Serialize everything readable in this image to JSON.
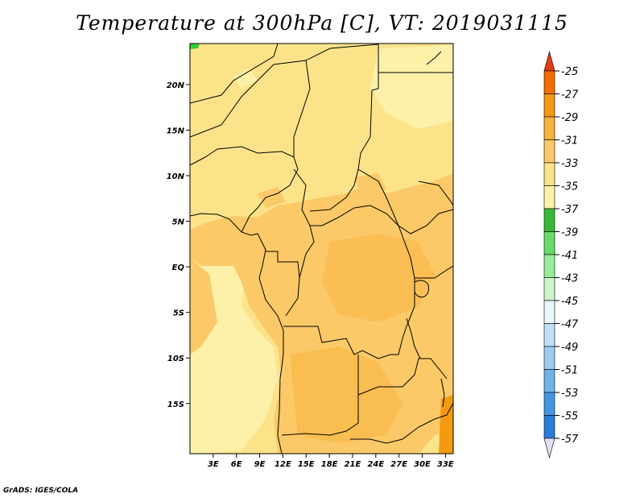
{
  "title": "Temperature at 300hPa [C], VT: 2019031115",
  "credit": "GrADS: IGES/COLA",
  "map": {
    "lat_range": [
      -20.5,
      24.5
    ],
    "lon_range": [
      0,
      34
    ],
    "lat_ticks": [
      {
        "value": 20,
        "label": "20N"
      },
      {
        "value": 15,
        "label": "15N"
      },
      {
        "value": 10,
        "label": "10N"
      },
      {
        "value": 5,
        "label": "5N"
      },
      {
        "value": 0,
        "label": "EQ"
      },
      {
        "value": -5,
        "label": "5S"
      },
      {
        "value": -10,
        "label": "10S"
      },
      {
        "value": -15,
        "label": "15S"
      }
    ],
    "lon_ticks": [
      {
        "value": 3,
        "label": "3E"
      },
      {
        "value": 6,
        "label": "6E"
      },
      {
        "value": 9,
        "label": "9E"
      },
      {
        "value": 12,
        "label": "12E"
      },
      {
        "value": 15,
        "label": "15E"
      },
      {
        "value": 18,
        "label": "18E"
      },
      {
        "value": 21,
        "label": "21E"
      },
      {
        "value": 24,
        "label": "24E"
      },
      {
        "value": 27,
        "label": "27E"
      },
      {
        "value": 30,
        "label": "30E"
      },
      {
        "value": 33,
        "label": "33E"
      }
    ],
    "field_colors": {
      "lt_35": "#fdf0a8",
      "35_33": "#fce38a",
      "33_31": "#fbc968",
      "31_29": "#f8b23c",
      "29_27": "#f49a11",
      "green_patch": "#33cc33"
    }
  },
  "colorbar": {
    "labels": [
      "-25",
      "-27",
      "-29",
      "-31",
      "-33",
      "-35",
      "-37",
      "-39",
      "-41",
      "-43",
      "-45",
      "-47",
      "-49",
      "-51",
      "-53",
      "-55",
      "-57"
    ],
    "colors": [
      "#e83a10",
      "#f56c00",
      "#f49a11",
      "#f8b23c",
      "#fbc968",
      "#fce38a",
      "#fdf0a8",
      "#33bb33",
      "#66dd66",
      "#99ee99",
      "#ccf5cc",
      "#e6f6fb",
      "#bfe0f6",
      "#9ccbf0",
      "#6fb2ea",
      "#4597e2",
      "#2a7cd8",
      "#1a5fc6",
      "#0e40a8",
      "#072490",
      "#000c6a",
      "#dfdff5"
    ]
  }
}
